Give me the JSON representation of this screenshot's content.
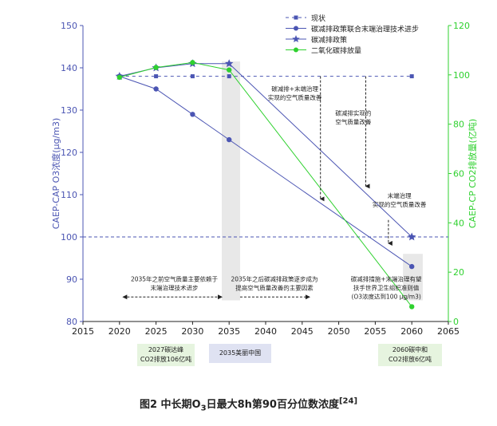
{
  "chart_data": {
    "type": "line",
    "x": [
      2020,
      2025,
      2030,
      2035,
      2060
    ],
    "xlim": [
      2015,
      2065
    ],
    "xticks": [
      2015,
      2020,
      2025,
      2030,
      2035,
      2040,
      2045,
      2050,
      2055,
      2060,
      2065
    ],
    "ylim_left": [
      80,
      150
    ],
    "yticks_left": [
      80,
      90,
      100,
      110,
      120,
      130,
      140,
      150
    ],
    "ylim_right": [
      0,
      120
    ],
    "yticks_right": [
      0,
      20,
      40,
      60,
      80,
      100,
      120
    ],
    "ylabel_left": "CAEP-CAP O3浓度(μg/m3)",
    "ylabel_right": "CAEP-CP CO2排放量(亿吨)",
    "target_line": 100,
    "series": [
      {
        "name": "现状",
        "axis": "left",
        "style": "dashed-square",
        "color": "#4b55b3",
        "x": [
          2020,
          2025,
          2030,
          2035,
          2060
        ],
        "values": [
          138,
          138,
          138,
          138,
          138
        ]
      },
      {
        "name": "碳减排政策联合末端治理技术进步",
        "axis": "left",
        "style": "circle",
        "color": "#4b55b3",
        "x": [
          2020,
          2025,
          2030,
          2035,
          2060
        ],
        "values": [
          138,
          135,
          129,
          123,
          93
        ]
      },
      {
        "name": "碳减排政策",
        "axis": "left",
        "style": "star",
        "color": "#4b55b3",
        "x": [
          2020,
          2025,
          2030,
          2035,
          2060
        ],
        "values": [
          138,
          140,
          141,
          141,
          100
        ]
      },
      {
        "name": "二氧化碳排放量",
        "axis": "right",
        "style": "circle",
        "color": "#2fd12f",
        "x": [
          2020,
          2025,
          2030,
          2035,
          2060
        ],
        "values": [
          99,
          103,
          105,
          102,
          6
        ]
      }
    ],
    "annotations": {
      "a1": [
        "碳减排+末端治理",
        "实现的空气质量改善"
      ],
      "a2": [
        "碳减排实现的",
        "空气质量改善"
      ],
      "a3": [
        "末端治理",
        "实现的空气质量改善"
      ],
      "a4": [
        "碳减排措施+末端治理有望",
        "扶手世界卫生组织准则值",
        "(O3浓度达到100 μg/m3)"
      ],
      "left_period": [
        "2035年之前空气质量主要依赖于",
        "末端治理技术进步"
      ],
      "right_period": [
        "2035年之后碳减排政策逐步成为",
        "提高空气质量改善的主要因素"
      ]
    },
    "milestones": {
      "m2027": [
        "2027碳达峰",
        "CO2排放106亿吨"
      ],
      "m2035": "2035美丽中国",
      "m2060": [
        "2060碳中和",
        "CO2排放6亿吨"
      ]
    }
  },
  "caption": {
    "prefix": "图2  中长期O",
    "sub": "3",
    "suffix": "日最大8h第90百分位数浓度",
    "sup": "[24]"
  }
}
